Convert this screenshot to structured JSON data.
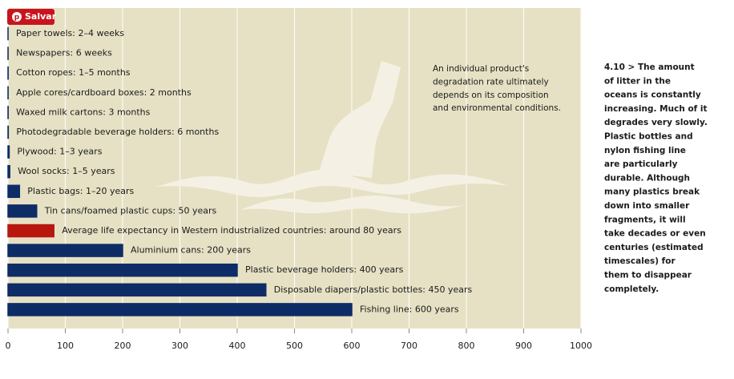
{
  "button": "Salvar",
  "chart_data": {
    "type": "barh",
    "categories": [
      "Paper towels: 2–4 weeks",
      "Newspapers: 6 weeks",
      "Cotton ropes: 1–5 months",
      "Apple cores/cardboard boxes: 2 months",
      "Waxed milk cartons: 3 months",
      "Photodegradable beverage holders: 6 months",
      "Plywood: 1–3 years",
      "Wool socks: 1–5 years",
      "Plastic bags: 1–20 years",
      "Tin cans/foamed plastic cups: 50 years",
      "Average life expectancy in Western industrialized countries: around 80 years",
      "Aluminium cans: 200 years",
      "Plastic beverage holders: 400 years",
      "Disposable diapers/plastic bottles: 450 years",
      "Fishing line: 600 years"
    ],
    "values": [
      0.06,
      0.12,
      0.25,
      0.17,
      0.25,
      0.5,
      2,
      3,
      20,
      50,
      80,
      200,
      400,
      450,
      600
    ],
    "colors": [
      "#0e2c66",
      "#0e2c66",
      "#0e2c66",
      "#0e2c66",
      "#0e2c66",
      "#0e2c66",
      "#0e2c66",
      "#0e2c66",
      "#0e2c66",
      "#0e2c66",
      "#b8170e",
      "#0e2c66",
      "#0e2c66",
      "#0e2c66",
      "#0e2c66"
    ],
    "xlim": [
      0,
      1000
    ],
    "xticks": [
      0,
      100,
      200,
      300,
      400,
      500,
      600,
      700,
      800,
      900,
      1000
    ],
    "grid": true,
    "annotation": [
      "An individual product's",
      "degradation rate ultimately",
      "depends on its composition",
      "and environmental conditions."
    ]
  },
  "caption": [
    "4.10 > The amount",
    "of litter in the",
    "oceans is constantly",
    "increasing. Much of it",
    "degrades very slowly.",
    "Plastic bottles and",
    "nylon fishing line",
    "are particularly",
    "durable. Although",
    "many plastics break",
    "down into smaller",
    "fragments, it will",
    "take decades or even",
    "centuries (estimated",
    "timescales) for",
    "them to disappear",
    "completely."
  ]
}
